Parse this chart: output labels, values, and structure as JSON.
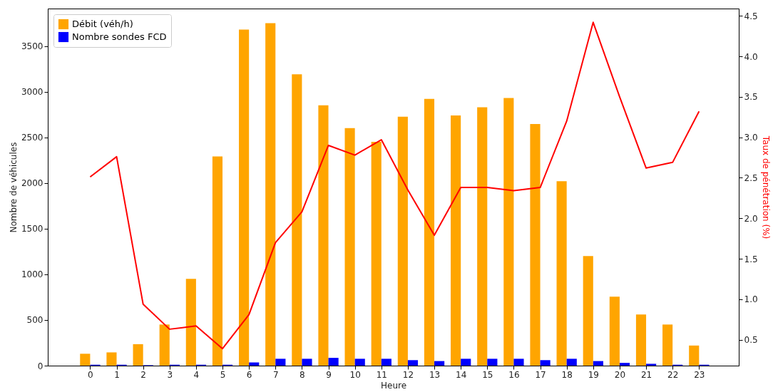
{
  "chart_data": {
    "type": "bar",
    "xlabel": "Heure",
    "ylabel": "Nombre de véhicules",
    "y2label": "Taux de pénétration (%)",
    "x": [
      0,
      1,
      2,
      3,
      4,
      5,
      6,
      7,
      8,
      9,
      10,
      11,
      12,
      13,
      14,
      15,
      16,
      17,
      18,
      19,
      20,
      21,
      22,
      23
    ],
    "xlim": [
      -1.6,
      24.5
    ],
    "xticks": [
      0,
      1,
      2,
      3,
      4,
      5,
      6,
      7,
      8,
      9,
      10,
      11,
      12,
      13,
      14,
      15,
      16,
      17,
      18,
      19,
      20,
      21,
      22,
      23
    ],
    "ylim": [
      0,
      3910
    ],
    "yticks": [
      0,
      500,
      1000,
      1500,
      2000,
      2500,
      3000,
      3500
    ],
    "y2lim": [
      0.18,
      4.59
    ],
    "y2ticks": [
      {
        "value": 0.5,
        "label": "0.5"
      },
      {
        "value": 1,
        "label": "1.0"
      },
      {
        "value": 1.5,
        "label": "1.5"
      },
      {
        "value": 2,
        "label": "2.0"
      },
      {
        "value": 2.5,
        "label": "2.5"
      },
      {
        "value": 3,
        "label": "3.0"
      },
      {
        "value": 3.5,
        "label": "3.5"
      },
      {
        "value": 4,
        "label": "4.0"
      },
      {
        "value": 4.5,
        "label": "4.5"
      }
    ],
    "legend": "top left",
    "grid": false,
    "series": [
      {
        "name": "Débit (véh/h)",
        "color": "#ffa500",
        "values": [
          130,
          145,
          235,
          450,
          950,
          2290,
          3680,
          3750,
          3190,
          2850,
          2600,
          2450,
          2725,
          2920,
          2740,
          2830,
          2930,
          2645,
          2020,
          1200,
          755,
          560,
          450,
          220
        ]
      },
      {
        "name": "Nombre sondes FCD",
        "color": "#0000ff",
        "values": [
          10,
          10,
          5,
          10,
          10,
          10,
          35,
          75,
          75,
          85,
          75,
          75,
          60,
          50,
          75,
          75,
          75,
          60,
          75,
          50,
          30,
          20,
          10,
          10
        ]
      },
      {
        "type": "line",
        "axis": "y2",
        "color": "#ff0000",
        "values": [
          2.51,
          2.76,
          0.94,
          0.63,
          0.67,
          0.39,
          0.81,
          1.7,
          2.08,
          2.9,
          2.78,
          2.97,
          2.35,
          1.79,
          2.38,
          2.38,
          2.34,
          2.38,
          3.2,
          4.42,
          3.5,
          2.62,
          2.69,
          3.32
        ]
      }
    ]
  }
}
